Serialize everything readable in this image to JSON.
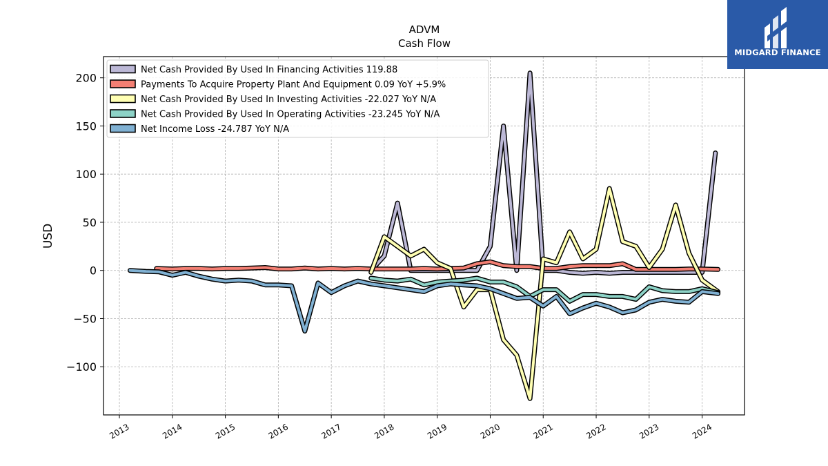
{
  "chart_data": {
    "type": "line",
    "title": "ADVM",
    "subtitle": "Cash Flow",
    "xlabel": "",
    "ylabel": "USD",
    "x_ticks": [
      "2013",
      "2014",
      "2015",
      "2016",
      "2017",
      "2018",
      "2019",
      "2020",
      "2021",
      "2022",
      "2023",
      "2024"
    ],
    "y_ticks": [
      -100,
      -50,
      0,
      50,
      100,
      150,
      200
    ],
    "xlim": [
      2012.7,
      2024.8
    ],
    "ylim": [
      -150,
      222
    ],
    "grid": true,
    "legend_position": "top-left",
    "series": [
      {
        "name": "Net Cash Provided By Used In Financing Activities",
        "legend_label": "Net Cash Provided By Used In Financing Activities  119.88",
        "color": "#bcb8d6",
        "x": [
          2017.75,
          2018.0,
          2018.25,
          2018.5,
          2018.75,
          2019.0,
          2019.25,
          2019.5,
          2019.75,
          2020.0,
          2020.25,
          2020.5,
          2020.75,
          2021.0,
          2021.25,
          2021.5,
          2021.75,
          2022.0,
          2022.25,
          2022.5,
          2022.75,
          2023.0,
          2023.25,
          2023.5,
          2023.75,
          2024.0,
          2024.25
        ],
        "values": [
          0,
          15,
          70,
          0,
          0,
          0,
          0,
          0,
          0,
          25,
          150,
          0,
          205,
          0,
          0,
          -2,
          -3,
          -2,
          -3,
          -2,
          -2,
          -2,
          -2,
          -2,
          -2,
          -2,
          122
        ]
      },
      {
        "name": "Payments To Acquire Property Plant And Equipment",
        "legend_label": "Payments To Acquire Property Plant And Equipment  0.09 YoY +5.9%",
        "color": "#f37f73",
        "x": [
          2013.7,
          2014.0,
          2014.25,
          2014.5,
          2014.75,
          2015.0,
          2015.25,
          2015.5,
          2015.75,
          2016.0,
          2016.25,
          2016.5,
          2016.75,
          2017.0,
          2017.25,
          2017.5,
          2017.75,
          2018.0,
          2018.25,
          2018.5,
          2018.75,
          2019.0,
          2019.25,
          2019.5,
          2019.75,
          2020.0,
          2020.25,
          2020.5,
          2020.75,
          2021.0,
          2021.25,
          2021.5,
          2021.75,
          2022.0,
          2022.25,
          2022.5,
          2022.75,
          2023.0,
          2023.25,
          2023.5,
          2023.75,
          2024.0,
          2024.3
        ],
        "values": [
          2,
          1.5,
          2,
          2,
          1.5,
          2,
          2,
          2.5,
          3,
          1.5,
          1.5,
          2.5,
          1.5,
          2,
          1.5,
          2,
          1.5,
          1.5,
          1.5,
          1.5,
          2,
          1.5,
          2,
          2.5,
          7,
          9,
          5,
          4,
          4,
          2,
          2,
          4,
          5,
          5,
          5,
          7,
          1,
          1,
          1,
          1,
          1.5,
          1.5,
          1
        ]
      },
      {
        "name": "Net Cash Provided By Used In Investing Activities",
        "legend_label": "Net Cash Provided By Used In Investing Activities  -22.027 YoY N/A",
        "color": "#ffffb3",
        "x": [
          2017.75,
          2018.0,
          2018.25,
          2018.5,
          2018.75,
          2019.0,
          2019.25,
          2019.5,
          2019.75,
          2020.0,
          2020.25,
          2020.5,
          2020.75,
          2021.0,
          2021.25,
          2021.5,
          2021.75,
          2022.0,
          2022.25,
          2022.5,
          2022.75,
          2023.0,
          2023.25,
          2023.5,
          2023.75,
          2024.0,
          2024.3
        ],
        "values": [
          -2,
          35,
          25,
          15,
          22,
          8,
          2,
          -38,
          -20,
          -20,
          -72,
          -88,
          -133,
          12,
          8,
          40,
          12,
          22,
          85,
          30,
          25,
          3,
          22,
          68,
          18,
          -10,
          -22
        ]
      },
      {
        "name": "Net Cash Provided By Used In Operating Activities",
        "legend_label": "Net Cash Provided By Used In Operating Activities  -23.245 YoY N/A",
        "color": "#8dd3c7",
        "x": [
          2017.75,
          2018.0,
          2018.25,
          2018.5,
          2018.75,
          2019.0,
          2019.25,
          2019.5,
          2019.75,
          2020.0,
          2020.25,
          2020.5,
          2020.75,
          2021.0,
          2021.25,
          2021.5,
          2021.75,
          2022.0,
          2022.25,
          2022.5,
          2022.75,
          2023.0,
          2023.25,
          2023.5,
          2023.75,
          2024.0,
          2024.3
        ],
        "values": [
          -8,
          -10,
          -11,
          -9,
          -15,
          -12,
          -11,
          -10,
          -8,
          -12,
          -12,
          -17,
          -27,
          -20,
          -20,
          -32,
          -25,
          -25,
          -27,
          -27,
          -30,
          -17,
          -21,
          -22,
          -22,
          -19,
          -23
        ]
      },
      {
        "name": "Net Income Loss",
        "legend_label": "Net Income Loss  -24.787 YoY N/A",
        "color": "#80b1d3",
        "x": [
          2013.2,
          2013.5,
          2013.75,
          2014.0,
          2014.25,
          2014.5,
          2014.75,
          2015.0,
          2015.25,
          2015.5,
          2015.75,
          2016.0,
          2016.25,
          2016.5,
          2016.75,
          2017.0,
          2017.25,
          2017.5,
          2017.75,
          2018.0,
          2018.25,
          2018.5,
          2018.75,
          2019.0,
          2019.25,
          2019.5,
          2019.75,
          2020.0,
          2020.25,
          2020.5,
          2020.75,
          2021.0,
          2021.25,
          2021.5,
          2021.75,
          2022.0,
          2022.25,
          2022.5,
          2022.75,
          2023.0,
          2023.25,
          2023.5,
          2023.75,
          2024.0,
          2024.3
        ],
        "values": [
          0,
          -1,
          -1.5,
          -5,
          -2,
          -6,
          -9,
          -11,
          -10,
          -11,
          -15,
          -15,
          -16,
          -63,
          -13,
          -23,
          -16,
          -11,
          -14,
          -16,
          -18,
          -20,
          -22,
          -16,
          -14,
          -15,
          -16,
          -19,
          -24,
          -29,
          -28,
          -37,
          -27,
          -45,
          -39,
          -34,
          -38,
          -44,
          -41,
          -33,
          -30,
          -32,
          -33,
          -22,
          -24
        ]
      }
    ]
  },
  "logo": {
    "text": "MIDGARD FINANCE",
    "background": "#2a5aa8"
  }
}
